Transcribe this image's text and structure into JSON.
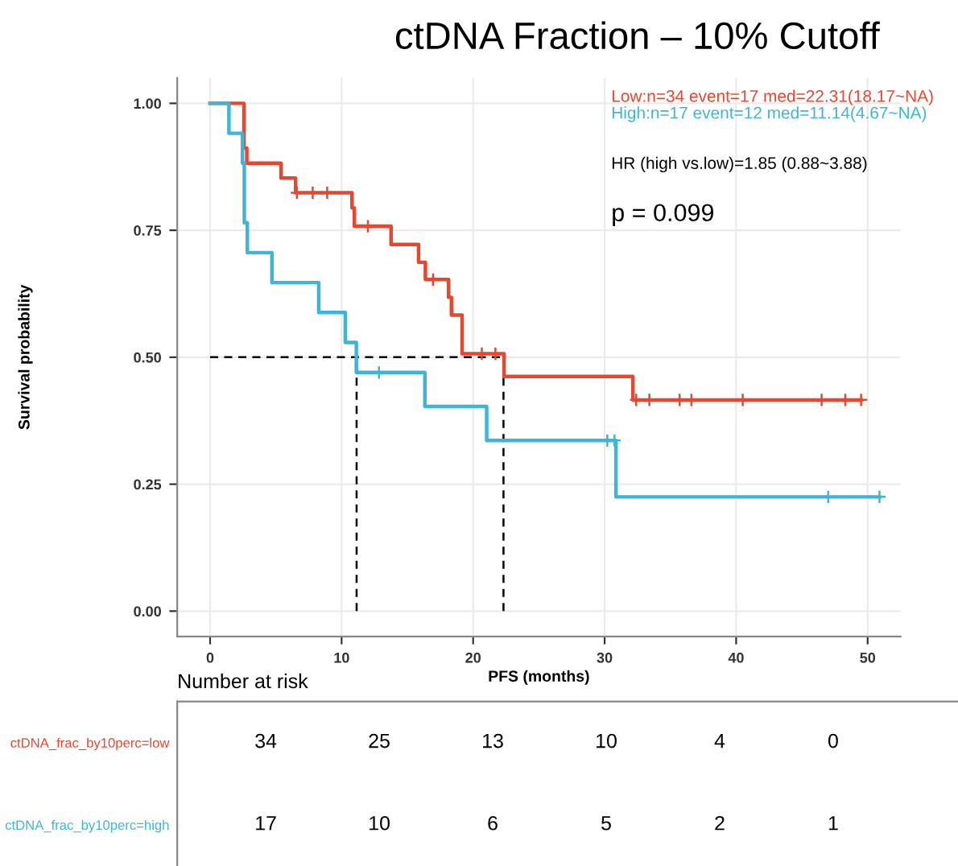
{
  "chart_data": [
    {
      "type": "step",
      "title": "ctDNA Fraction – 10% Cutoff",
      "xlabel": "PFS (months)",
      "ylabel": "Survival probability",
      "xlim": [
        -2.5,
        52.5
      ],
      "xticks": [
        0,
        10,
        20,
        30,
        40,
        50
      ],
      "ylim": [
        -0.05,
        1.05
      ],
      "yticks": [
        {
          "value": 0,
          "label": "0.00"
        },
        {
          "value": 0.25,
          "label": "0.25"
        },
        {
          "value": 0.5,
          "label": "0.50"
        },
        {
          "value": 0.75,
          "label": "0.75"
        },
        {
          "value": 1,
          "label": "1.00"
        }
      ],
      "grid": true,
      "annotations": [
        "Low:n=34 event=17 med=22.31(18.17~NA)",
        "High:n=17 event=12 med=11.14(4.67~NA)",
        "HR (high vs.low)=1.85 (0.88~3.88)",
        "p = 0.099"
      ],
      "series": [
        {
          "type": "step",
          "color": "#e8472f",
          "x": [
            0,
            2.57,
            2.79,
            5.39,
            6.5,
            10.79,
            10.97,
            13.76,
            15.85,
            16.37,
            18.13,
            18.35,
            19.16,
            22.35,
            32.15,
            49.5
          ],
          "values": [
            1,
            0.912,
            0.882,
            0.853,
            0.824,
            0.794,
            0.758,
            0.722,
            0.687,
            0.653,
            0.618,
            0.583,
            0.507,
            0.462,
            0.416,
            0.416
          ]
        },
        {
          "type": "step",
          "color": "#3fb5d6",
          "x": [
            0,
            1.43,
            2.46,
            2.6,
            2.83,
            4.7,
            8.26,
            10.28,
            11.12,
            16.33,
            21.03,
            30.86,
            50.9
          ],
          "values": [
            1,
            0.941,
            0.882,
            0.765,
            0.706,
            0.647,
            0.588,
            0.529,
            0.47,
            0.403,
            0.336,
            0.225,
            0.225
          ]
        },
        {
          "type": "scatter",
          "marker": "cross",
          "color": "#e8472f",
          "x": [
            6.6,
            7.8,
            8.9,
            12.0,
            16.95,
            20.66,
            21.69,
            32.4,
            33.4,
            35.7,
            36.6,
            40.5,
            46.5,
            48.3,
            49.5
          ],
          "values": [
            0.824,
            0.824,
            0.824,
            0.758,
            0.653,
            0.507,
            0.507,
            0.416,
            0.416,
            0.416,
            0.416,
            0.416,
            0.416,
            0.416,
            0.416
          ]
        },
        {
          "type": "scatter",
          "marker": "cross",
          "color": "#3fb5d6",
          "x": [
            12.84,
            30.2,
            30.75,
            47.0,
            50.9
          ],
          "values": [
            0.47,
            0.336,
            0.336,
            0.225,
            0.225
          ]
        },
        {
          "type": "line",
          "line_style": "dashed",
          "color": "#000000",
          "x": [
            0,
            22.31
          ],
          "values": [
            0.5,
            0.5
          ]
        },
        {
          "type": "line",
          "line_style": "dashed",
          "color": "#000000",
          "x": [
            11.14,
            11.14
          ],
          "values": [
            0,
            0.5
          ]
        },
        {
          "type": "line",
          "line_style": "dashed",
          "color": "#000000",
          "x": [
            22.31,
            22.31
          ],
          "values": [
            0,
            0.5
          ]
        }
      ]
    },
    {
      "type": "heatmap",
      "title": "Number at risk",
      "categories": [
        null,
        null,
        null,
        null,
        null,
        null
      ],
      "data_labels": true,
      "y_categories": [
        "ctDNA_frac_by10perc=low",
        "ctDNA_frac_by10perc=high"
      ],
      "colors": [
        "#e8472f",
        "#3fb5d6"
      ],
      "cells": [
        [
          34,
          25,
          13,
          10,
          4,
          0
        ],
        [
          17,
          10,
          6,
          5,
          2,
          1
        ]
      ]
    }
  ]
}
